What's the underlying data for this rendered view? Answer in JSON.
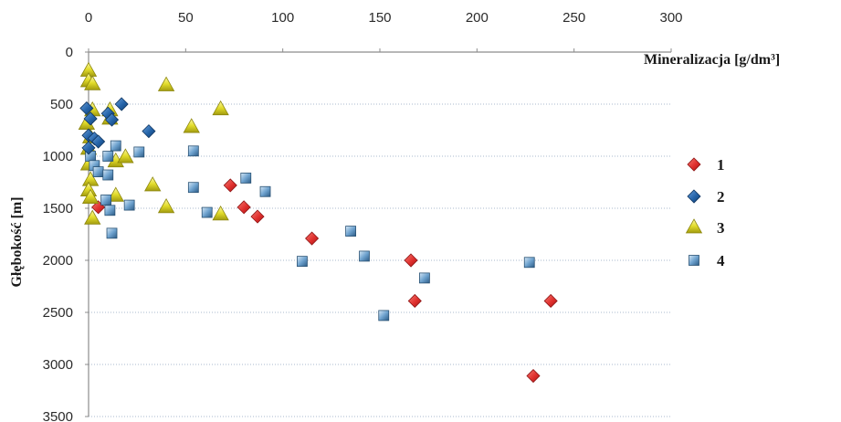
{
  "chart_data": {
    "type": "scatter",
    "title": "",
    "xlabel": "Mineralizacja [g/dm³]",
    "ylabel": "Głębokość [m]",
    "x_axis_position": "top",
    "y_axis_inverted": true,
    "xlim": [
      0,
      300
    ],
    "ylim": [
      0,
      3500
    ],
    "xticks": [
      0,
      50,
      100,
      150,
      200,
      250,
      300
    ],
    "yticks": [
      0,
      500,
      1000,
      1500,
      2000,
      2500,
      3000,
      3500
    ],
    "grid": "horizontal dotted",
    "legend_position": "right",
    "series": [
      {
        "name": "1",
        "marker": "diamond",
        "color": "#e0302e",
        "points": [
          [
            5,
            1490
          ],
          [
            73,
            1280
          ],
          [
            80,
            1490
          ],
          [
            87,
            1580
          ],
          [
            115,
            1790
          ],
          [
            166,
            2000
          ],
          [
            168,
            2390
          ],
          [
            229,
            3110
          ],
          [
            238,
            2390
          ]
        ]
      },
      {
        "name": "2",
        "marker": "diamond",
        "color": "#2463a8",
        "points": [
          [
            -1,
            540
          ],
          [
            1,
            640
          ],
          [
            0,
            800
          ],
          [
            0,
            920
          ],
          [
            3,
            830
          ],
          [
            5,
            860
          ],
          [
            10,
            590
          ],
          [
            12,
            650
          ],
          [
            17,
            500
          ],
          [
            31,
            760
          ]
        ]
      },
      {
        "name": "3",
        "marker": "triangle",
        "color": "#e2dc2a",
        "points": [
          [
            0,
            180
          ],
          [
            0,
            280
          ],
          [
            2,
            310
          ],
          [
            2,
            560
          ],
          [
            -1,
            690
          ],
          [
            1,
            820
          ],
          [
            0,
            930
          ],
          [
            0,
            1080
          ],
          [
            1,
            1230
          ],
          [
            0,
            1330
          ],
          [
            1,
            1400
          ],
          [
            2,
            1600
          ],
          [
            11,
            560
          ],
          [
            11,
            640
          ],
          [
            14,
            1050
          ],
          [
            19,
            1010
          ],
          [
            14,
            1380
          ],
          [
            33,
            1280
          ],
          [
            40,
            1490
          ],
          [
            40,
            320
          ],
          [
            53,
            720
          ],
          [
            68,
            550
          ],
          [
            68,
            1560
          ]
        ]
      },
      {
        "name": "4",
        "marker": "square",
        "color": "#6fa3cf",
        "points": [
          [
            1,
            1000
          ],
          [
            3,
            1090
          ],
          [
            5,
            1150
          ],
          [
            10,
            1000
          ],
          [
            14,
            900
          ],
          [
            10,
            1180
          ],
          [
            9,
            1420
          ],
          [
            11,
            1520
          ],
          [
            21,
            1470
          ],
          [
            12,
            1740
          ],
          [
            26,
            960
          ],
          [
            54,
            950
          ],
          [
            54,
            1300
          ],
          [
            61,
            1540
          ],
          [
            81,
            1210
          ],
          [
            91,
            1340
          ],
          [
            110,
            2010
          ],
          [
            135,
            1720
          ],
          [
            142,
            1960
          ],
          [
            152,
            2530
          ],
          [
            173,
            2170
          ],
          [
            227,
            2020
          ]
        ]
      }
    ]
  }
}
